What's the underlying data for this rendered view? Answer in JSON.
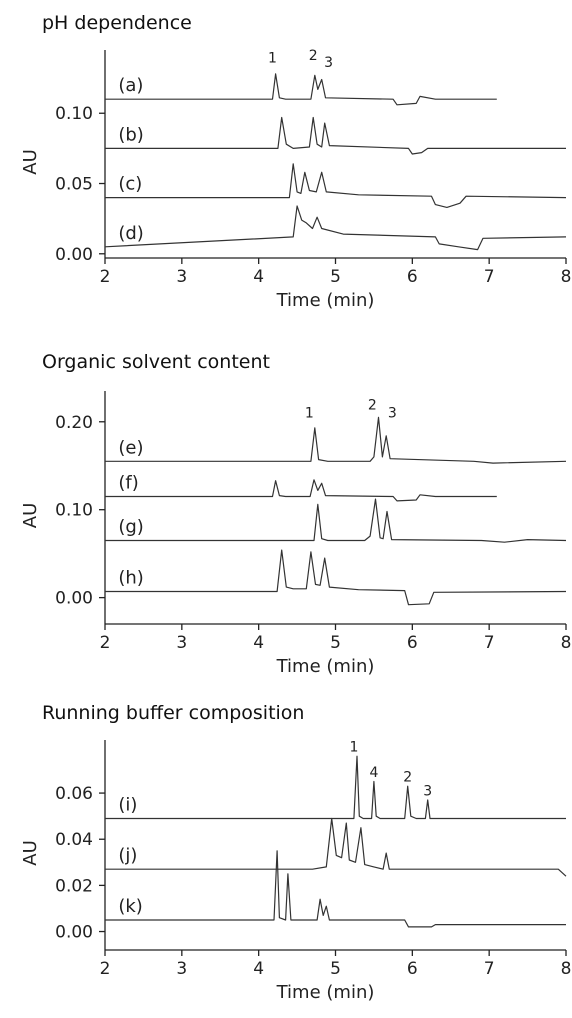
{
  "chart_data": [
    {
      "type": "line",
      "title": "pH dependence",
      "xlabel": "Time (min)",
      "ylabel": "AU",
      "xlim": [
        2,
        8
      ],
      "ylim": [
        -0.003,
        0.145
      ],
      "xticks": [
        "2",
        "3",
        "4",
        "5",
        "6",
        "7",
        "8"
      ],
      "xtick_values": [
        2,
        3,
        4,
        5,
        6,
        7,
        8
      ],
      "yticks": [
        "0.00",
        "0.05",
        "0.10"
      ],
      "ytick_values": [
        0.0,
        0.05,
        0.1
      ],
      "grid": false,
      "series": [
        {
          "label": "(a)",
          "label_x": 2.2,
          "points": [
            [
              2,
              0.11
            ],
            [
              4.18,
              0.11
            ],
            [
              4.22,
              0.128
            ],
            [
              4.27,
              0.111
            ],
            [
              4.35,
              0.11
            ],
            [
              4.68,
              0.11
            ],
            [
              4.73,
              0.127
            ],
            [
              4.77,
              0.117
            ],
            [
              4.82,
              0.124
            ],
            [
              4.87,
              0.111
            ],
            [
              5.75,
              0.11
            ],
            [
              5.8,
              0.106
            ],
            [
              6.05,
              0.107
            ],
            [
              6.1,
              0.112
            ],
            [
              6.3,
              0.11
            ],
            [
              7.1,
              0.11
            ]
          ]
        },
        {
          "label": "(b)",
          "label_x": 2.2,
          "points": [
            [
              2,
              0.075
            ],
            [
              4.25,
              0.075
            ],
            [
              4.3,
              0.097
            ],
            [
              4.36,
              0.078
            ],
            [
              4.45,
              0.075
            ],
            [
              4.66,
              0.076
            ],
            [
              4.71,
              0.097
            ],
            [
              4.76,
              0.078
            ],
            [
              4.82,
              0.076
            ],
            [
              4.86,
              0.093
            ],
            [
              4.92,
              0.077
            ],
            [
              5.95,
              0.075
            ],
            [
              6.0,
              0.071
            ],
            [
              6.12,
              0.072
            ],
            [
              6.2,
              0.075
            ],
            [
              8,
              0.075
            ]
          ]
        },
        {
          "label": "(c)",
          "label_x": 2.2,
          "points": [
            [
              2,
              0.04
            ],
            [
              4.4,
              0.04
            ],
            [
              4.45,
              0.064
            ],
            [
              4.5,
              0.044
            ],
            [
              4.55,
              0.043
            ],
            [
              4.6,
              0.058
            ],
            [
              4.66,
              0.045
            ],
            [
              4.75,
              0.044
            ],
            [
              4.82,
              0.058
            ],
            [
              4.88,
              0.044
            ],
            [
              5.3,
              0.042
            ],
            [
              6.25,
              0.041
            ],
            [
              6.3,
              0.035
            ],
            [
              6.45,
              0.033
            ],
            [
              6.62,
              0.036
            ],
            [
              6.7,
              0.041
            ],
            [
              8,
              0.04
            ]
          ]
        },
        {
          "label": "(d)",
          "label_x": 2.2,
          "points": [
            [
              2,
              0.005
            ],
            [
              4.45,
              0.012
            ],
            [
              4.5,
              0.034
            ],
            [
              4.56,
              0.024
            ],
            [
              4.62,
              0.022
            ],
            [
              4.7,
              0.018
            ],
            [
              4.76,
              0.026
            ],
            [
              4.82,
              0.018
            ],
            [
              5.1,
              0.014
            ],
            [
              6.3,
              0.012
            ],
            [
              6.35,
              0.007
            ],
            [
              6.6,
              0.005
            ],
            [
              6.85,
              0.003
            ],
            [
              6.92,
              0.011
            ],
            [
              8,
              0.012
            ]
          ]
        }
      ],
      "peak_labels": [
        {
          "text": "1",
          "x": 4.18,
          "y": 0.136
        },
        {
          "text": "2",
          "x": 4.71,
          "y": 0.138
        },
        {
          "text": "3",
          "x": 4.91,
          "y": 0.133
        }
      ]
    },
    {
      "type": "line",
      "title": "Organic solvent content",
      "xlabel": "Time (min)",
      "ylabel": "AU",
      "xlim": [
        2,
        8
      ],
      "ylim": [
        -0.03,
        0.235
      ],
      "xticks": [
        "2",
        "3",
        "4",
        "5",
        "6",
        "7",
        "8"
      ],
      "xtick_values": [
        2,
        3,
        4,
        5,
        6,
        7,
        8
      ],
      "yticks": [
        "0.00",
        "0.10",
        "0.20"
      ],
      "ytick_values": [
        0.0,
        0.1,
        0.2
      ],
      "grid": false,
      "series": [
        {
          "label": "(e)",
          "label_x": 2.2,
          "points": [
            [
              2,
              0.155
            ],
            [
              4.68,
              0.155
            ],
            [
              4.73,
              0.193
            ],
            [
              4.78,
              0.157
            ],
            [
              4.9,
              0.155
            ],
            [
              5.45,
              0.155
            ],
            [
              5.5,
              0.16
            ],
            [
              5.56,
              0.205
            ],
            [
              5.61,
              0.16
            ],
            [
              5.66,
              0.184
            ],
            [
              5.71,
              0.158
            ],
            [
              6.8,
              0.155
            ],
            [
              7.05,
              0.153
            ],
            [
              8,
              0.155
            ]
          ]
        },
        {
          "label": "(f)",
          "label_x": 2.2,
          "points": [
            [
              2,
              0.115
            ],
            [
              4.18,
              0.115
            ],
            [
              4.22,
              0.133
            ],
            [
              4.27,
              0.116
            ],
            [
              4.35,
              0.115
            ],
            [
              4.67,
              0.115
            ],
            [
              4.72,
              0.134
            ],
            [
              4.77,
              0.122
            ],
            [
              4.82,
              0.13
            ],
            [
              4.87,
              0.116
            ],
            [
              5.75,
              0.115
            ],
            [
              5.8,
              0.11
            ],
            [
              6.05,
              0.111
            ],
            [
              6.1,
              0.117
            ],
            [
              6.3,
              0.115
            ],
            [
              7.1,
              0.115
            ]
          ]
        },
        {
          "label": "(g)",
          "label_x": 2.2,
          "points": [
            [
              2,
              0.065
            ],
            [
              4.72,
              0.065
            ],
            [
              4.77,
              0.106
            ],
            [
              4.82,
              0.067
            ],
            [
              4.9,
              0.065
            ],
            [
              5.38,
              0.065
            ],
            [
              5.45,
              0.07
            ],
            [
              5.52,
              0.112
            ],
            [
              5.58,
              0.068
            ],
            [
              5.62,
              0.067
            ],
            [
              5.67,
              0.098
            ],
            [
              5.73,
              0.066
            ],
            [
              6.9,
              0.065
            ],
            [
              7.2,
              0.063
            ],
            [
              7.5,
              0.066
            ],
            [
              8,
              0.065
            ]
          ]
        },
        {
          "label": "(h)",
          "label_x": 2.2,
          "points": [
            [
              2,
              0.007
            ],
            [
              4.24,
              0.007
            ],
            [
              4.3,
              0.054
            ],
            [
              4.36,
              0.012
            ],
            [
              4.45,
              0.01
            ],
            [
              4.62,
              0.01
            ],
            [
              4.68,
              0.052
            ],
            [
              4.74,
              0.015
            ],
            [
              4.8,
              0.014
            ],
            [
              4.86,
              0.045
            ],
            [
              4.92,
              0.012
            ],
            [
              5.3,
              0.009
            ],
            [
              5.9,
              0.008
            ],
            [
              5.95,
              -0.008
            ],
            [
              6.22,
              -0.007
            ],
            [
              6.28,
              0.006
            ],
            [
              8,
              0.007
            ]
          ]
        }
      ],
      "peak_labels": [
        {
          "text": "1",
          "x": 4.66,
          "y": 0.205
        },
        {
          "text": "2",
          "x": 5.48,
          "y": 0.214
        },
        {
          "text": "3",
          "x": 5.74,
          "y": 0.205
        }
      ]
    },
    {
      "type": "line",
      "title": "Running buffer composition",
      "xlabel": "Time (min)",
      "ylabel": "AU",
      "xlim": [
        2,
        8
      ],
      "ylim": [
        -0.008,
        0.083
      ],
      "xticks": [
        "2",
        "3",
        "4",
        "5",
        "6",
        "7",
        "8"
      ],
      "xtick_values": [
        2,
        3,
        4,
        5,
        6,
        7,
        8
      ],
      "yticks": [
        "0.00",
        "0.02",
        "0.04",
        "0.06"
      ],
      "ytick_values": [
        0.0,
        0.02,
        0.04,
        0.06
      ],
      "grid": false,
      "series": [
        {
          "label": "(i)",
          "label_x": 2.2,
          "points": [
            [
              2,
              0.049
            ],
            [
              5.24,
              0.049
            ],
            [
              5.28,
              0.076
            ],
            [
              5.31,
              0.05
            ],
            [
              5.36,
              0.049
            ],
            [
              5.47,
              0.049
            ],
            [
              5.5,
              0.065
            ],
            [
              5.53,
              0.05
            ],
            [
              5.58,
              0.049
            ],
            [
              5.9,
              0.049
            ],
            [
              5.94,
              0.063
            ],
            [
              5.98,
              0.05
            ],
            [
              6.05,
              0.049
            ],
            [
              6.17,
              0.049
            ],
            [
              6.2,
              0.057
            ],
            [
              6.23,
              0.049
            ],
            [
              8,
              0.049
            ]
          ]
        },
        {
          "label": "(j)",
          "label_x": 2.2,
          "points": [
            [
              2,
              0.027
            ],
            [
              4.7,
              0.027
            ],
            [
              4.88,
              0.028
            ],
            [
              4.95,
              0.049
            ],
            [
              5.01,
              0.033
            ],
            [
              5.08,
              0.032
            ],
            [
              5.14,
              0.047
            ],
            [
              5.18,
              0.031
            ],
            [
              5.26,
              0.03
            ],
            [
              5.33,
              0.045
            ],
            [
              5.38,
              0.029
            ],
            [
              5.5,
              0.028
            ],
            [
              5.62,
              0.027
            ],
            [
              5.66,
              0.034
            ],
            [
              5.7,
              0.027
            ],
            [
              7.9,
              0.027
            ],
            [
              8,
              0.024
            ]
          ]
        },
        {
          "label": "(k)",
          "label_x": 2.2,
          "points": [
            [
              2,
              0.005
            ],
            [
              4.2,
              0.005
            ],
            [
              4.24,
              0.035
            ],
            [
              4.27,
              0.006
            ],
            [
              4.35,
              0.005
            ],
            [
              4.38,
              0.025
            ],
            [
              4.42,
              0.005
            ],
            [
              4.76,
              0.005
            ],
            [
              4.8,
              0.014
            ],
            [
              4.84,
              0.007
            ],
            [
              4.88,
              0.011
            ],
            [
              4.92,
              0.005
            ],
            [
              5.9,
              0.005
            ],
            [
              5.95,
              0.002
            ],
            [
              6.25,
              0.002
            ],
            [
              6.3,
              0.003
            ],
            [
              8,
              0.003
            ]
          ]
        }
      ],
      "peak_labels": [
        {
          "text": "1",
          "x": 5.24,
          "y": 0.078
        },
        {
          "text": "4",
          "x": 5.5,
          "y": 0.067
        },
        {
          "text": "2",
          "x": 5.94,
          "y": 0.065
        },
        {
          "text": "3",
          "x": 6.2,
          "y": 0.059
        }
      ]
    }
  ]
}
